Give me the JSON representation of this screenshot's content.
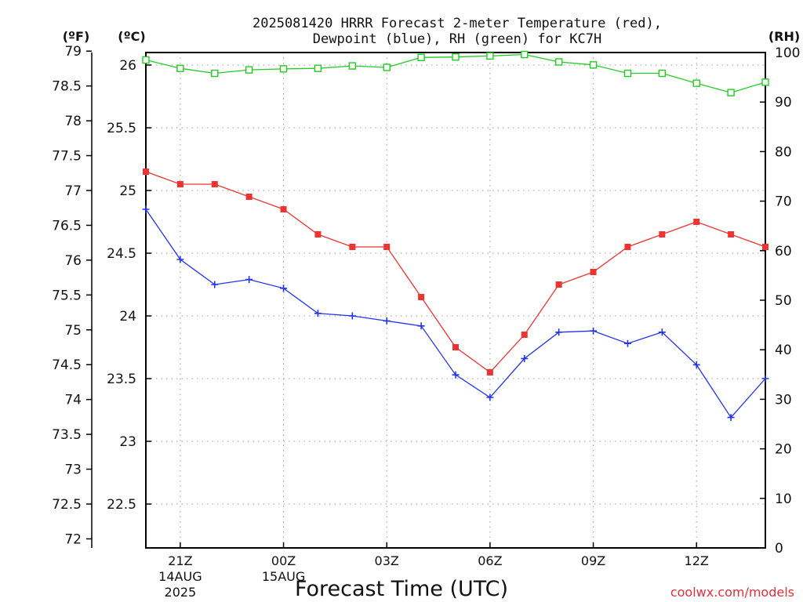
{
  "chart_data": {
    "type": "line",
    "title_line1": "2025081420 HRRR Forecast 2-meter Temperature (red),",
    "title_line2": "Dewpoint (blue), RH (green) for KC7H",
    "xlabel": "Forecast Time (UTC)",
    "credit": "coolwx.com/models",
    "unit_labels": {
      "fahrenheit": "(ºF)",
      "celsius": "(ºC)",
      "rh": "(RH)"
    },
    "x": [
      "20Z",
      "21Z",
      "22Z",
      "23Z",
      "00Z",
      "01Z",
      "02Z",
      "03Z",
      "04Z",
      "05Z",
      "06Z",
      "07Z",
      "08Z",
      "09Z",
      "10Z",
      "11Z",
      "12Z",
      "13Z",
      "14Z"
    ],
    "x_ticks": [
      {
        "label": "21Z",
        "index": 1,
        "sub1": "14AUG",
        "sub2": "2025"
      },
      {
        "label": "00Z",
        "index": 4,
        "sub1": "15AUG",
        "sub2": ""
      },
      {
        "label": "03Z",
        "index": 7,
        "sub1": "",
        "sub2": ""
      },
      {
        "label": "06Z",
        "index": 10,
        "sub1": "",
        "sub2": ""
      },
      {
        "label": "09Z",
        "index": 13,
        "sub1": "",
        "sub2": ""
      },
      {
        "label": "12Z",
        "index": 16,
        "sub1": "",
        "sub2": ""
      }
    ],
    "ylim_celsius": [
      22.15,
      26.1
    ],
    "y_ticks_celsius": [
      "22.5",
      "23",
      "23.5",
      "24",
      "24.5",
      "25",
      "25.5",
      "26"
    ],
    "y_ticks_fahrenheit": [
      "72",
      "72.5",
      "73",
      "73.5",
      "74",
      "74.5",
      "75",
      "75.5",
      "76",
      "76.5",
      "77",
      "77.5",
      "78",
      "78.5",
      "79"
    ],
    "ylim_rh": [
      0,
      100
    ],
    "y_ticks_rh": [
      "0",
      "10",
      "20",
      "30",
      "40",
      "50",
      "60",
      "70",
      "80",
      "90",
      "100"
    ],
    "grid": true,
    "series": [
      {
        "name": "Temperature",
        "color": "#ee3333",
        "marker": "filled-square",
        "axis": "celsius",
        "values": [
          25.15,
          25.05,
          25.05,
          24.95,
          24.85,
          24.65,
          24.55,
          24.55,
          24.15,
          23.75,
          23.55,
          23.85,
          24.25,
          24.35,
          24.55,
          24.65,
          24.75,
          24.65,
          24.55
        ]
      },
      {
        "name": "Dewpoint",
        "color": "#2233ee",
        "marker": "plus",
        "axis": "celsius",
        "values": [
          24.85,
          24.45,
          24.25,
          24.29,
          24.22,
          24.02,
          24.0,
          23.96,
          23.92,
          23.53,
          23.35,
          23.66,
          23.87,
          23.88,
          23.78,
          23.87,
          23.61,
          23.19,
          23.5
        ]
      },
      {
        "name": "RH",
        "color": "#22cc22",
        "marker": "open-square",
        "axis": "rh",
        "values": [
          98.5,
          96.8,
          95.8,
          96.5,
          96.7,
          96.8,
          97.3,
          97.0,
          99.0,
          99.1,
          99.3,
          99.6,
          98.1,
          97.5,
          95.8,
          95.8,
          93.8,
          91.9,
          94.0
        ]
      }
    ]
  }
}
